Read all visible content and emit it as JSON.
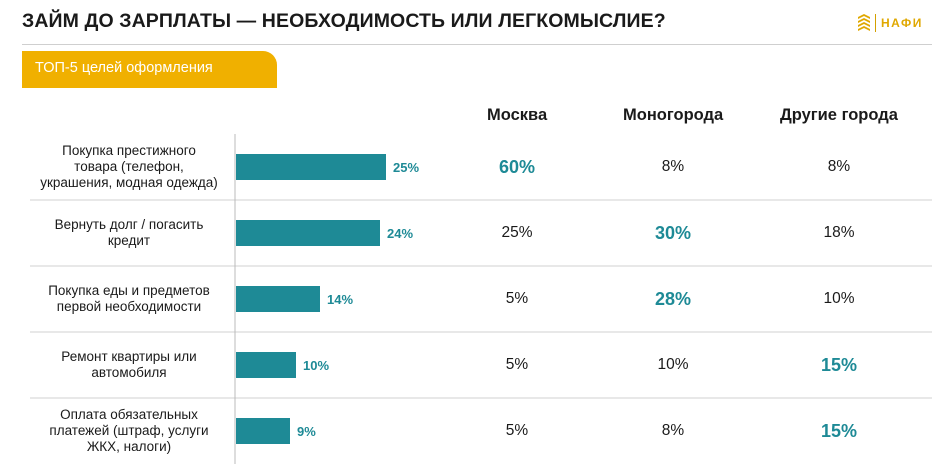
{
  "title": "ЗАЙМ ДО ЗАРПЛАТЫ — НЕОБХОДИМОСТЬ ИЛИ ЛЕГКОМЫСЛИЕ?",
  "logo_text": "НАФИ",
  "tab_label": "ТОП-5 целей оформления",
  "colors": {
    "bar": "#1e8a96",
    "accent": "#f0b000",
    "highlight": "#1e8a96"
  },
  "chart_data": {
    "type": "bar",
    "orientation": "horizontal",
    "categories": [
      "Покупка престижного\nтовара (телефон,\nукрашения, модная одежда)",
      "Вернуть долг / погасить\nкредит",
      "Покупка еды и предметов\nпервой необходимости",
      "Ремонт квартиры или\nавтомобиля",
      "Оплата обязательных\nплатежей (штраф, услуги\nЖКХ, налоги)"
    ],
    "values": [
      25,
      24,
      14,
      10,
      9
    ],
    "value_labels": [
      "25%",
      "24%",
      "14%",
      "10%",
      "9%"
    ],
    "xlim": [
      0,
      25
    ]
  },
  "table": {
    "columns": [
      "Москва",
      "Моногорода",
      "Другие города"
    ],
    "rows": [
      {
        "cells": [
          "60%",
          "8%",
          "8%"
        ],
        "highlight": [
          true,
          false,
          false
        ]
      },
      {
        "cells": [
          "25%",
          "30%",
          "18%"
        ],
        "highlight": [
          false,
          true,
          false
        ]
      },
      {
        "cells": [
          "5%",
          "28%",
          "10%"
        ],
        "highlight": [
          false,
          true,
          false
        ]
      },
      {
        "cells": [
          "5%",
          "10%",
          "15%"
        ],
        "highlight": [
          false,
          false,
          true
        ]
      },
      {
        "cells": [
          "5%",
          "8%",
          "15%"
        ],
        "highlight": [
          false,
          false,
          true
        ]
      }
    ]
  }
}
